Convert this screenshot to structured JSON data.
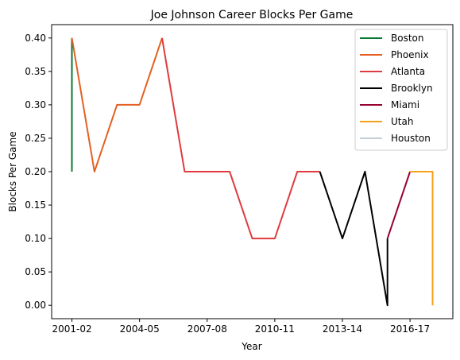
{
  "chart_data": {
    "type": "line",
    "title": "Joe Johnson  Career Blocks Per Game",
    "xlabel": "Year",
    "ylabel": "Blocks Per Game",
    "ylim": [
      -0.02,
      0.42
    ],
    "xticks": [
      "2001-02",
      "2004-05",
      "2007-08",
      "2010-11",
      "2013-14",
      "2016-17"
    ],
    "yticks": [
      "0.00",
      "0.05",
      "0.10",
      "0.15",
      "0.20",
      "0.25",
      "0.30",
      "0.35",
      "0.40"
    ],
    "legend_position": "top-right",
    "grid": false,
    "series": [
      {
        "name": "Boston",
        "color": "#0b7a35",
        "points": [
          [
            2001,
            0.4
          ],
          [
            2001,
            0.2
          ]
        ]
      },
      {
        "name": "Phoenix",
        "color": "#e56020",
        "points": [
          [
            2001,
            0.4
          ],
          [
            2002,
            0.2
          ],
          [
            2003,
            0.3
          ],
          [
            2004,
            0.3
          ],
          [
            2005,
            0.4
          ]
        ]
      },
      {
        "name": "Atlanta",
        "color": "#e03a3e",
        "points": [
          [
            2005,
            0.4
          ],
          [
            2006,
            0.2
          ],
          [
            2007,
            0.2
          ],
          [
            2008,
            0.2
          ],
          [
            2009,
            0.1
          ],
          [
            2010,
            0.1
          ],
          [
            2011,
            0.2
          ],
          [
            2012,
            0.2
          ]
        ]
      },
      {
        "name": "Brooklyn",
        "color": "#000000",
        "points": [
          [
            2012,
            0.2
          ],
          [
            2013,
            0.1
          ],
          [
            2014,
            0.2
          ],
          [
            2015,
            0.0
          ],
          [
            2015,
            0.1
          ]
        ]
      },
      {
        "name": "Miami",
        "color": "#98002e",
        "points": [
          [
            2015,
            0.1
          ],
          [
            2016,
            0.2
          ]
        ]
      },
      {
        "name": "Utah",
        "color": "#f9a01b",
        "points": [
          [
            2016,
            0.2
          ],
          [
            2017,
            0.2
          ],
          [
            2017,
            0.0
          ]
        ]
      },
      {
        "name": "Houston",
        "color": "#c4ced4",
        "points": []
      }
    ]
  }
}
